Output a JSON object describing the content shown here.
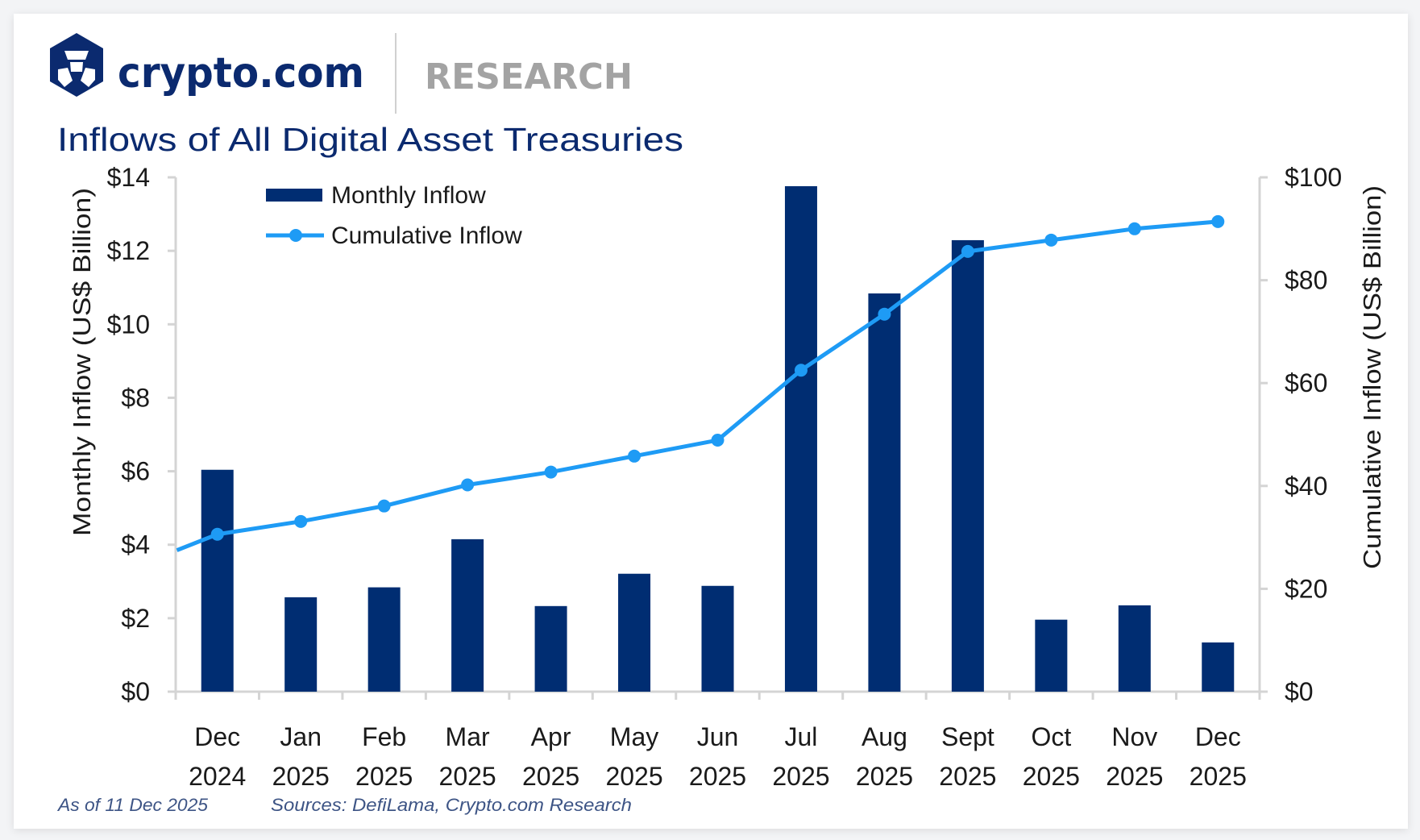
{
  "brand": {
    "name": "crypto.com",
    "section": "RESEARCH",
    "logo_icon": "crypto-com-lion-hexagon-logo",
    "brand_color": "#0b2a6f",
    "section_color": "#a3a3a3"
  },
  "footer": {
    "as_of": "As of 11 Dec 2025",
    "sources": "Sources: DefiLama, Crypto.com Research"
  },
  "chart_data": {
    "type": "bar",
    "title": "Inflows of All Digital Asset Treasuries",
    "categories": [
      [
        "Dec",
        "2024"
      ],
      [
        "Jan",
        "2025"
      ],
      [
        "Feb",
        "2025"
      ],
      [
        "Mar",
        "2025"
      ],
      [
        "Apr",
        "2025"
      ],
      [
        "May",
        "2025"
      ],
      [
        "Jun",
        "2025"
      ],
      [
        "Jul",
        "2025"
      ],
      [
        "Aug",
        "2025"
      ],
      [
        "Sept",
        "2025"
      ],
      [
        "Oct",
        "2025"
      ],
      [
        "Nov",
        "2025"
      ],
      [
        "Dec",
        "2025"
      ]
    ],
    "series": [
      {
        "name": "Monthly Inflow",
        "type": "bar",
        "axis": "left",
        "color": "#002d72",
        "values": [
          6.04,
          2.57,
          2.84,
          4.15,
          2.33,
          3.21,
          2.88,
          13.76,
          10.84,
          12.29,
          1.96,
          2.35,
          1.34
        ]
      },
      {
        "name": "Cumulative Inflow",
        "type": "line",
        "axis": "right",
        "color": "#1e9bf5",
        "values": [
          30.6,
          33.1,
          36.1,
          40.2,
          42.7,
          45.8,
          48.9,
          62.5,
          73.4,
          85.6,
          87.8,
          90.0,
          91.4
        ],
        "value_at_left_axis": 27.5
      }
    ],
    "ylabel": "Monthly Inflow (US$ Billion)",
    "ylabel_right": "Cumulative Inflow (US$ Billion)",
    "ylim": [
      0,
      14
    ],
    "ylim_right": [
      0,
      100
    ],
    "yticks": [
      "$0",
      "$2",
      "$4",
      "$6",
      "$8",
      "$10",
      "$12",
      "$14"
    ],
    "ytick_values": [
      0,
      2,
      4,
      6,
      8,
      10,
      12,
      14
    ],
    "yticks_right": [
      "$0",
      "$20",
      "$40",
      "$60",
      "$80",
      "$100"
    ],
    "ytick_values_right": [
      0,
      20,
      40,
      60,
      80,
      100
    ],
    "grid": false,
    "legend": {
      "position": "top-left",
      "entries": [
        "Monthly Inflow",
        "Cumulative Inflow"
      ]
    },
    "axis_color": "#d4d4d4",
    "title_color": "#0b2a6f"
  }
}
